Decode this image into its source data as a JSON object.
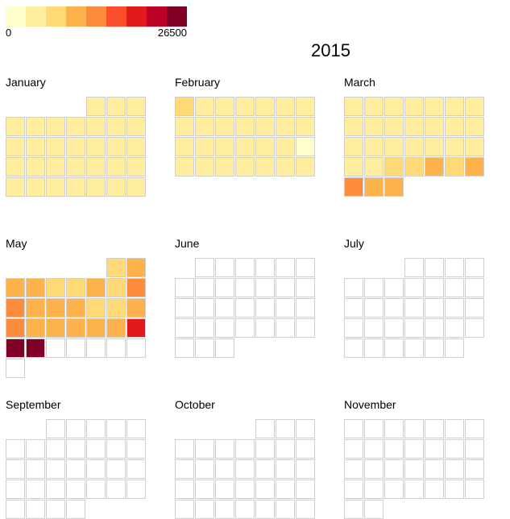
{
  "year": "2015",
  "legend": {
    "min_label": "0",
    "max_label": "26500",
    "colors": [
      "#ffffcc",
      "#ffeda0",
      "#fed976",
      "#feb24c",
      "#fd8d3c",
      "#fc4e2a",
      "#e31a1c",
      "#bd0026",
      "#800026"
    ]
  },
  "chart_data": {
    "type": "heatmap",
    "layout": "calendar",
    "year": 2015,
    "value_range": [
      0,
      26500
    ],
    "empty_color": "#ffffff",
    "months": [
      {
        "name": "January",
        "start_weekday": 4,
        "days": 31,
        "levels": [
          1,
          1,
          1,
          1,
          1,
          1,
          1,
          1,
          1,
          1,
          1,
          1,
          1,
          1,
          1,
          1,
          1,
          1,
          1,
          1,
          1,
          1,
          1,
          1,
          1,
          1,
          1,
          1,
          1,
          1,
          1
        ]
      },
      {
        "name": "February",
        "start_weekday": 0,
        "days": 28,
        "levels": [
          2,
          1,
          1,
          1,
          1,
          1,
          1,
          1,
          1,
          1,
          1,
          1,
          1,
          1,
          1,
          1,
          1,
          1,
          1,
          1,
          0,
          1,
          1,
          1,
          1,
          1,
          1,
          1
        ]
      },
      {
        "name": "March",
        "start_weekday": 0,
        "days": 31,
        "levels": [
          1,
          1,
          1,
          1,
          1,
          1,
          1,
          1,
          1,
          1,
          1,
          1,
          1,
          1,
          1,
          1,
          1,
          1,
          1,
          1,
          1,
          1,
          1,
          2,
          2,
          3,
          2,
          3,
          4,
          3,
          3
        ]
      },
      {
        "name": "May",
        "start_weekday": 5,
        "days": 31,
        "levels": [
          2,
          3,
          3,
          3,
          2,
          2,
          3,
          2,
          4,
          4,
          3,
          3,
          3,
          2,
          2,
          3,
          4,
          3,
          3,
          3,
          3,
          3,
          6,
          8,
          8,
          null,
          null,
          null,
          null,
          null,
          null
        ]
      },
      {
        "name": "June",
        "start_weekday": 1,
        "days": 30,
        "levels": [
          null,
          null,
          null,
          null,
          null,
          null,
          null,
          null,
          null,
          null,
          null,
          null,
          null,
          null,
          null,
          null,
          null,
          null,
          null,
          null,
          null,
          null,
          null,
          null,
          null,
          null,
          null,
          null,
          null,
          null
        ]
      },
      {
        "name": "July",
        "start_weekday": 3,
        "days": 31,
        "levels": [
          null,
          null,
          null,
          null,
          null,
          null,
          null,
          null,
          null,
          null,
          null,
          null,
          null,
          null,
          null,
          null,
          null,
          null,
          null,
          null,
          null,
          null,
          null,
          null,
          null,
          null,
          null,
          null,
          null,
          null,
          null
        ]
      },
      {
        "name": "September",
        "start_weekday": 2,
        "days": 30,
        "levels": [
          null,
          null,
          null,
          null,
          null,
          null,
          null,
          null,
          null,
          null,
          null,
          null,
          null,
          null,
          null,
          null,
          null,
          null,
          null,
          null,
          null,
          null,
          null,
          null,
          null,
          null,
          null,
          null,
          null,
          null
        ]
      },
      {
        "name": "October",
        "start_weekday": 4,
        "days": 31,
        "levels": [
          null,
          null,
          null,
          null,
          null,
          null,
          null,
          null,
          null,
          null,
          null,
          null,
          null,
          null,
          null,
          null,
          null,
          null,
          null,
          null,
          null,
          null,
          null,
          null,
          null,
          null,
          null,
          null,
          null,
          null,
          null
        ]
      },
      {
        "name": "November",
        "start_weekday": 0,
        "days": 30,
        "levels": [
          null,
          null,
          null,
          null,
          null,
          null,
          null,
          null,
          null,
          null,
          null,
          null,
          null,
          null,
          null,
          null,
          null,
          null,
          null,
          null,
          null,
          null,
          null,
          null,
          null,
          null,
          null,
          null,
          null,
          null
        ]
      }
    ]
  }
}
